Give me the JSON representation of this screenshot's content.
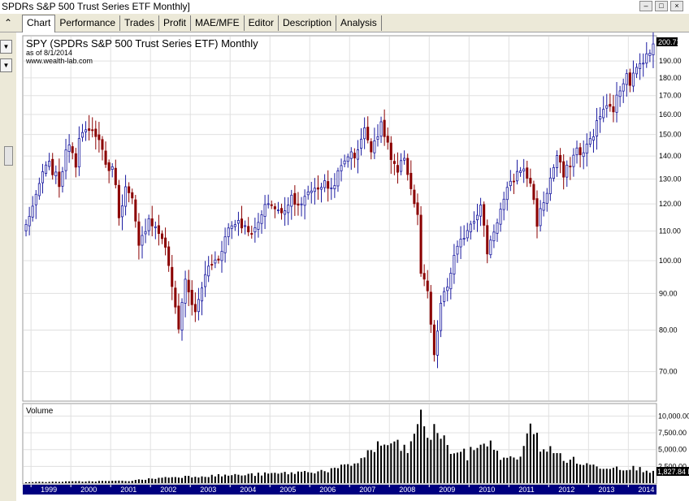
{
  "window": {
    "title": "SPDRs S&P 500 Trust Series ETF Monthly]",
    "buttons": [
      "minimize-icon",
      "restore-icon",
      "close-icon"
    ]
  },
  "tabs": [
    "Chart",
    "Performance",
    "Trades",
    "Profit",
    "MAE/MFE",
    "Editor",
    "Description",
    "Analysis"
  ],
  "active_tab": "Chart",
  "chart_header": {
    "title": "SPY (SPDRs S&P 500 Trust Series ETF) Monthly",
    "as_of": "as of 8/1/2014",
    "site": "www.wealth-lab.com"
  },
  "volume_label": "Volume",
  "last_price_label": "200.71",
  "last_volume_label": "1,827.84 M",
  "colors": {
    "up": "#1a1aa0",
    "down": "#8b0000",
    "axis_band": "#000080",
    "volume": "#000000",
    "grid": "#e0e0e0"
  },
  "chart_data": [
    {
      "type": "candlestick",
      "title": "SPY (SPDRs S&P 500 Trust Series ETF) Monthly",
      "scale": "log",
      "ylim": [
        64,
        205
      ],
      "y_ticks": [
        70,
        80,
        90,
        100,
        110,
        120,
        130,
        140,
        150,
        160,
        170,
        180,
        190
      ],
      "x_ticks": [
        "1999",
        "2000",
        "2001",
        "2002",
        "2003",
        "2004",
        "2005",
        "2006",
        "2007",
        "2008",
        "2009",
        "2010",
        "2011",
        "2012",
        "2013",
        "2014"
      ],
      "x_range": [
        "1998-11",
        "2014-08"
      ],
      "close_anchors": [
        [
          "1998-11",
          112
        ],
        [
          "1998-12",
          116
        ],
        [
          "1999-02",
          122
        ],
        [
          "1999-04",
          133
        ],
        [
          "1999-06",
          136
        ],
        [
          "1999-08",
          131
        ],
        [
          "1999-09",
          128
        ],
        [
          "1999-12",
          147
        ],
        [
          "2000-02",
          137
        ],
        [
          "2000-03",
          150
        ],
        [
          "2000-08",
          151
        ],
        [
          "2000-10",
          143
        ],
        [
          "2000-12",
          132
        ],
        [
          "2001-01",
          137
        ],
        [
          "2001-03",
          116
        ],
        [
          "2001-05",
          126
        ],
        [
          "2001-07",
          121
        ],
        [
          "2001-09",
          104
        ],
        [
          "2001-12",
          115
        ],
        [
          "2002-02",
          111
        ],
        [
          "2002-04",
          108
        ],
        [
          "2002-06",
          99
        ],
        [
          "2002-07",
          91
        ],
        [
          "2002-09",
          81
        ],
        [
          "2002-11",
          94
        ],
        [
          "2003-02",
          84
        ],
        [
          "2003-04",
          92
        ],
        [
          "2003-06",
          98
        ],
        [
          "2003-09",
          101
        ],
        [
          "2003-12",
          111
        ],
        [
          "2004-03",
          114
        ],
        [
          "2004-05",
          111
        ],
        [
          "2004-08",
          110
        ],
        [
          "2004-12",
          121
        ],
        [
          "2005-04",
          116
        ],
        [
          "2005-07",
          123
        ],
        [
          "2005-10",
          119
        ],
        [
          "2005-12",
          125
        ],
        [
          "2006-05",
          128
        ],
        [
          "2006-07",
          126
        ],
        [
          "2006-12",
          141
        ],
        [
          "2007-02",
          140
        ],
        [
          "2007-05",
          152
        ],
        [
          "2007-07",
          144
        ],
        [
          "2007-10",
          154
        ],
        [
          "2007-12",
          146
        ],
        [
          "2008-01",
          138
        ],
        [
          "2008-03",
          132
        ],
        [
          "2008-05",
          140
        ],
        [
          "2008-07",
          126
        ],
        [
          "2008-09",
          115
        ],
        [
          "2008-10",
          96
        ],
        [
          "2008-12",
          90
        ],
        [
          "2009-02",
          73
        ],
        [
          "2009-04",
          87
        ],
        [
          "2009-06",
          92
        ],
        [
          "2009-08",
          101
        ],
        [
          "2009-12",
          111
        ],
        [
          "2010-04",
          119
        ],
        [
          "2010-06",
          103
        ],
        [
          "2010-09",
          114
        ],
        [
          "2010-12",
          125
        ],
        [
          "2011-04",
          135
        ],
        [
          "2011-07",
          129
        ],
        [
          "2011-09",
          113
        ],
        [
          "2011-12",
          125
        ],
        [
          "2012-03",
          140
        ],
        [
          "2012-05",
          131
        ],
        [
          "2012-09",
          143
        ],
        [
          "2012-11",
          141
        ],
        [
          "2013-02",
          151
        ],
        [
          "2013-05",
          163
        ],
        [
          "2013-08",
          163
        ],
        [
          "2013-12",
          184
        ],
        [
          "2014-01",
          178
        ],
        [
          "2014-04",
          188
        ],
        [
          "2014-06",
          195
        ],
        [
          "2014-07",
          193
        ],
        [
          "2014-08",
          200.71
        ]
      ]
    },
    {
      "type": "bar",
      "title": "Volume",
      "ylabel": "M",
      "y_ticks": [
        "2,500.00",
        "5,000.00",
        "7,500.00",
        "10,000.00"
      ],
      "y_tick_values": [
        2500,
        5000,
        7500,
        10000
      ],
      "ylim": [
        0,
        11500
      ],
      "volume_anchors": [
        [
          "1998-11",
          150
        ],
        [
          "2001-06",
          350
        ],
        [
          "2002-06",
          900
        ],
        [
          "2003-06",
          1100
        ],
        [
          "2004-06",
          1250
        ],
        [
          "2005-06",
          1500
        ],
        [
          "2006-06",
          1900
        ],
        [
          "2007-01",
          2600
        ],
        [
          "2007-08",
          5200
        ],
        [
          "2008-01",
          6000
        ],
        [
          "2008-03",
          5400
        ],
        [
          "2008-06",
          5000
        ],
        [
          "2008-09",
          7700
        ],
        [
          "2008-10",
          11200
        ],
        [
          "2008-11",
          8800
        ],
        [
          "2009-01",
          6500
        ],
        [
          "2009-03",
          8400
        ],
        [
          "2009-06",
          5200
        ],
        [
          "2009-12",
          4100
        ],
        [
          "2010-05",
          6400
        ],
        [
          "2010-12",
          3400
        ],
        [
          "2011-03",
          3600
        ],
        [
          "2011-08",
          8700
        ],
        [
          "2011-10",
          5500
        ],
        [
          "2012-06",
          3600
        ],
        [
          "2013-01",
          2600
        ],
        [
          "2014-01",
          2300
        ],
        [
          "2014-08",
          1827.84
        ]
      ]
    }
  ]
}
